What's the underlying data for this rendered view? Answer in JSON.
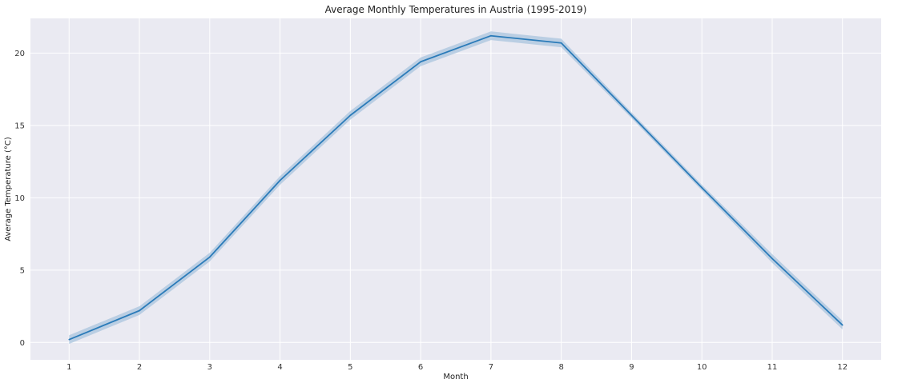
{
  "chart_data": {
    "type": "line",
    "title": "Average Monthly Temperatures in Austria (1995-2019)",
    "xlabel": "Month",
    "ylabel": "Average Temperature (°C)",
    "x": [
      1,
      2,
      3,
      4,
      5,
      6,
      7,
      8,
      9,
      10,
      11,
      12
    ],
    "series": [
      {
        "values": [
          0.2,
          2.2,
          5.9,
          11.2,
          15.7,
          19.4,
          21.2,
          20.7,
          15.7,
          10.7,
          5.8,
          1.2
        ],
        "ci_low": [
          -0.1,
          1.9,
          5.6,
          10.9,
          15.4,
          19.1,
          20.9,
          20.4,
          15.5,
          10.5,
          5.5,
          0.9
        ],
        "ci_high": [
          0.5,
          2.5,
          6.2,
          11.5,
          16.0,
          19.7,
          21.5,
          21.0,
          15.9,
          10.9,
          6.1,
          1.5
        ],
        "color": "#2b7bb9",
        "band_color": "#a9c4de"
      }
    ],
    "xticks": [
      "1",
      "2",
      "3",
      "4",
      "5",
      "6",
      "7",
      "8",
      "9",
      "10",
      "11",
      "12"
    ],
    "yticks": [
      "0",
      "5",
      "10",
      "15",
      "20"
    ],
    "ytick_values": [
      0,
      5,
      10,
      15,
      20
    ],
    "xlim": [
      0.45,
      12.55
    ],
    "ylim": [
      -1.2,
      22.4
    ],
    "grid": true,
    "background": "#eaeaf2",
    "grid_color": "#ffffff"
  }
}
